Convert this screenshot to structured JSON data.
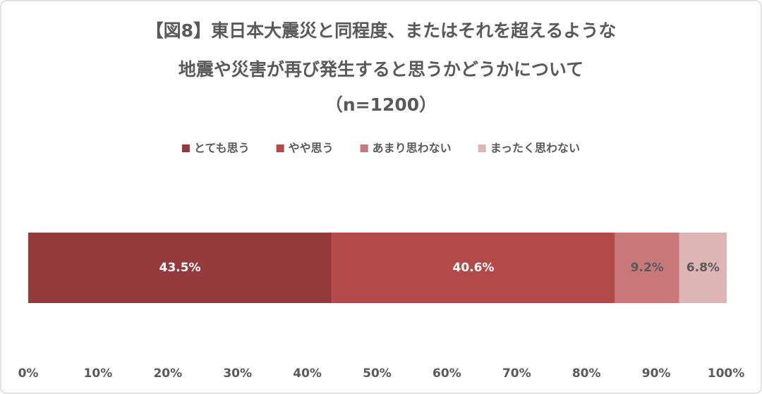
{
  "chart_data": {
    "type": "stacked-bar-horizontal",
    "title": [
      "【図8】東日本大震災と同程度、またはそれを超えるような",
      "地震や災害が再び発生すると思うかどうかについて",
      "（n=1200）"
    ],
    "categories": [
      null
    ],
    "series": [
      {
        "name": "とても思う",
        "color": "#943a3a",
        "values": [
          43.5
        ],
        "value_labels": [
          "43.5%"
        ]
      },
      {
        "name": "やや思う",
        "color": "#b34a4a",
        "values": [
          40.6
        ],
        "value_labels": [
          "40.6%"
        ]
      },
      {
        "name": "あまり思わない",
        "color": "#c87878",
        "values": [
          9.2
        ],
        "value_labels": [
          "9.2%"
        ]
      },
      {
        "name": "まったく思わない",
        "color": "#deb5b5",
        "values": [
          6.8
        ],
        "value_labels": [
          "6.8%"
        ]
      }
    ],
    "xlim": [
      0,
      100
    ],
    "xticks": [
      {
        "value": 0,
        "label": "0%"
      },
      {
        "value": 10,
        "label": "10%"
      },
      {
        "value": 20,
        "label": "20%"
      },
      {
        "value": 30,
        "label": "30%"
      },
      {
        "value": 40,
        "label": "40%"
      },
      {
        "value": 50,
        "label": "50%"
      },
      {
        "value": 60,
        "label": "60%"
      },
      {
        "value": 70,
        "label": "70%"
      },
      {
        "value": 80,
        "label": "80%"
      },
      {
        "value": 90,
        "label": "90%"
      },
      {
        "value": 100,
        "label": "100%"
      }
    ],
    "legend": "top"
  }
}
